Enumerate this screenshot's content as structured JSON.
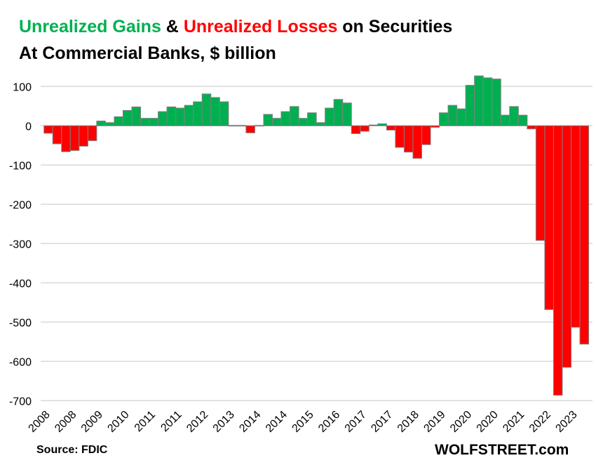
{
  "title": {
    "part1": "Unrealized Gains",
    "part2": " & ",
    "part3": "Unrealized Losses",
    "part4": " on Securities",
    "line2": "At Commercial  Banks, $ billion"
  },
  "source": "Source: FDIC",
  "brand": "WOLFSTREET.com",
  "colors": {
    "gain": "#00B050",
    "loss": "#FF0000",
    "bar_border": "#7F7F7F",
    "grid": "#D9D9D9"
  },
  "chart_data": {
    "type": "bar",
    "title": "Unrealized Gains & Unrealized Losses on Securities At Commercial Banks, $ billion",
    "ylim": [
      -700,
      100
    ],
    "yticks": [
      100,
      0,
      -100,
      -200,
      -300,
      -400,
      -500,
      -600,
      -700
    ],
    "grid": true,
    "xtick_labels": [
      "2008",
      "2008",
      "2009",
      "2010",
      "2011",
      "2011",
      "2012",
      "2013",
      "2014",
      "2014",
      "2015",
      "2016",
      "2017",
      "2017",
      "2018",
      "2019",
      "2020",
      "2020",
      "2021",
      "2022",
      "2023"
    ],
    "values": [
      -19,
      -46,
      -66,
      -63,
      -52,
      -38,
      12,
      8,
      23,
      39,
      48,
      19,
      19,
      36,
      48,
      45,
      52,
      61,
      81,
      72,
      61,
      1,
      1,
      -18,
      1,
      29,
      19,
      36,
      49,
      19,
      33,
      8,
      45,
      67,
      58,
      -20,
      -14,
      2,
      5,
      -11,
      -55,
      -67,
      -83,
      -48,
      -4,
      33,
      52,
      43,
      103,
      127,
      122,
      119,
      27,
      49,
      27,
      -8,
      -292,
      -468,
      -686,
      -615,
      -513,
      -556
    ]
  }
}
